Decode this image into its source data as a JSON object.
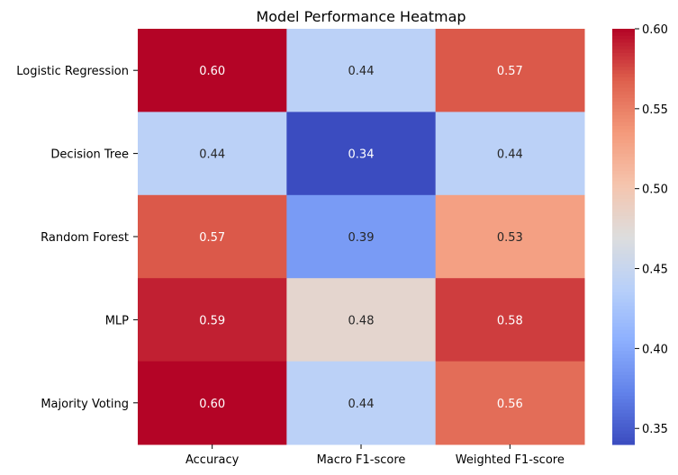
{
  "chart_data": {
    "type": "heatmap",
    "title": "Model Performance Heatmap",
    "rows": [
      "Logistic Regression",
      "Decision Tree",
      "Random Forest",
      "MLP",
      "Majority Voting"
    ],
    "columns": [
      "Accuracy",
      "Macro F1-score",
      "Weighted F1-score"
    ],
    "values": [
      [
        0.6,
        0.44,
        0.57
      ],
      [
        0.44,
        0.34,
        0.44
      ],
      [
        0.57,
        0.39,
        0.53
      ],
      [
        0.59,
        0.48,
        0.58
      ],
      [
        0.6,
        0.44,
        0.56
      ]
    ],
    "value_labels": [
      [
        "0.60",
        "0.44",
        "0.57"
      ],
      [
        "0.44",
        "0.34",
        "0.44"
      ],
      [
        "0.57",
        "0.39",
        "0.53"
      ],
      [
        "0.59",
        "0.48",
        "0.58"
      ],
      [
        "0.60",
        "0.44",
        "0.56"
      ]
    ],
    "colormap": "coolwarm",
    "vmin": 0.34,
    "vmax": 0.6,
    "colorbar_ticks": [
      0.35,
      0.4,
      0.45,
      0.5,
      0.55,
      0.6
    ],
    "colorbar_tick_labels": [
      "0.35",
      "0.40",
      "0.45",
      "0.50",
      "0.55",
      "0.60"
    ],
    "grid": false
  }
}
